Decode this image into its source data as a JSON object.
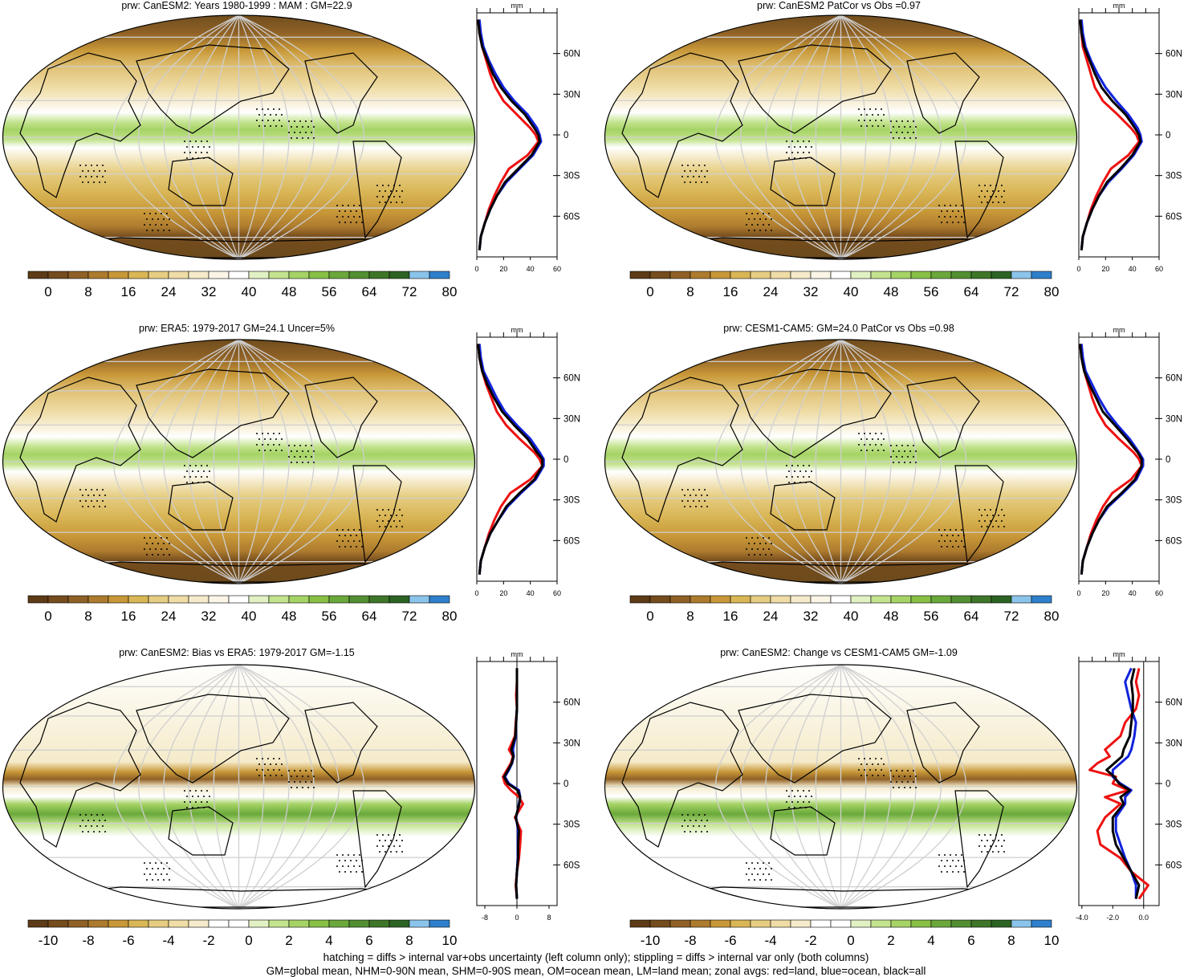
{
  "footnotes": [
    "hatching = diffs > internal var+obs uncertainty (left column only); stippling = diffs > internal var only (both columns)",
    "GM=global mean, NHM=0-90N mean, SHM=0-90S mean, OM=ocean mean, LM=land mean; zonal avgs: red=land, blue=ocean, black=all"
  ],
  "colors": {
    "zonal_land": "#ee1111",
    "zonal_ocean": "#1122dd",
    "zonal_all": "#000000"
  },
  "abs_palette": [
    "#5c3b16",
    "#754c1d",
    "#8f6126",
    "#ad7b2e",
    "#c89838",
    "#d9b656",
    "#e6cd82",
    "#efdca6",
    "#f5ebca",
    "#faf5e6",
    "#ffffff",
    "#e2f1c3",
    "#c3e38e",
    "#a5d365",
    "#87c045",
    "#6aa83b",
    "#528f32",
    "#3e7629",
    "#2c6323",
    "#8bc4ea",
    "#2f80cc"
  ],
  "diff_palette": [
    "#5c3b16",
    "#754c1d",
    "#8f6126",
    "#ad7b2e",
    "#c89838",
    "#d9b656",
    "#e6cd82",
    "#efdca6",
    "#f5ebca",
    "#ffffff",
    "#ffffff",
    "#e2f1c3",
    "#c3e38e",
    "#a5d365",
    "#87c045",
    "#6aa83b",
    "#528f32",
    "#3e7629",
    "#2c6323",
    "#8bc4ea",
    "#2f80cc"
  ],
  "panels": [
    {
      "id": "p1",
      "title": "prw: CanESM2: Years 1980-1999 : MAM : GM=22.9",
      "colorbar_labels": [
        "0",
        "8",
        "16",
        "24",
        "32",
        "40",
        "48",
        "56",
        "64",
        "72",
        "80"
      ],
      "zonal_unit": "mm",
      "zonal_xticks": [
        "0",
        "20",
        "40",
        "60"
      ],
      "zonal_yticks": [
        "60N",
        "30N",
        "0",
        "30S",
        "60S"
      ],
      "chart_data": {
        "type": "line",
        "xlim": [
          0,
          60
        ],
        "ylim": [
          -90,
          90
        ],
        "lat": [
          -85,
          -75,
          -65,
          -55,
          -45,
          -35,
          -25,
          -15,
          -5,
          0,
          5,
          15,
          25,
          35,
          45,
          55,
          65,
          75,
          85
        ],
        "series": [
          {
            "color_key": "zonal_land",
            "values": [
              2,
              3,
              6,
              9,
              13,
              18,
              24,
              38,
              46,
              44,
              40,
              30,
              20,
              14,
              10,
              7,
              4,
              2,
              1
            ]
          },
          {
            "color_key": "zonal_ocean",
            "values": [
              2,
              3,
              6,
              10,
              15,
              22,
              32,
              42,
              48,
              47,
              45,
              38,
              28,
              20,
              14,
              9,
              5,
              3,
              2
            ]
          },
          {
            "color_key": "zonal_all",
            "values": [
              2,
              3,
              6,
              10,
              15,
              21,
              31,
              41,
              47,
              46,
              43,
              36,
              26,
              18,
              12,
              8,
              4,
              2,
              1
            ]
          }
        ]
      }
    },
    {
      "id": "p2",
      "title": "prw: CanESM2 PatCor vs Obs =0.97",
      "colorbar_labels": [
        "0",
        "8",
        "16",
        "24",
        "32",
        "40",
        "48",
        "56",
        "64",
        "72",
        "80"
      ],
      "zonal_unit": "mm",
      "zonal_xticks": [
        "0",
        "20",
        "40",
        "60"
      ],
      "zonal_yticks": [
        "60N",
        "30N",
        "0",
        "30S",
        "60S"
      ],
      "chart_data": {
        "type": "line",
        "xlim": [
          0,
          60
        ],
        "ylim": [
          -90,
          90
        ],
        "lat": [
          -85,
          -75,
          -65,
          -55,
          -45,
          -35,
          -25,
          -15,
          -5,
          0,
          5,
          15,
          25,
          35,
          45,
          55,
          65,
          75,
          85
        ],
        "series": [
          {
            "color_key": "zonal_land",
            "values": [
              2,
              3,
              6,
              9,
              13,
              18,
              24,
              37,
              45,
              43,
              39,
              29,
              18,
              12,
              9,
              6,
              3,
              2,
              1
            ]
          },
          {
            "color_key": "zonal_ocean",
            "values": [
              2,
              3,
              6,
              10,
              15,
              22,
              32,
              41,
              47,
              46,
              44,
              37,
              28,
              20,
              14,
              9,
              5,
              3,
              2
            ]
          },
          {
            "color_key": "zonal_all",
            "values": [
              2,
              3,
              6,
              10,
              15,
              21,
              31,
              40,
              46,
              45,
              42,
              35,
              25,
              17,
              12,
              8,
              4,
              2,
              1
            ]
          }
        ]
      }
    },
    {
      "id": "p3",
      "title": "prw: ERA5: 1979-2017 GM=24.1 Uncer=5%",
      "colorbar_labels": [
        "0",
        "8",
        "16",
        "24",
        "32",
        "40",
        "48",
        "56",
        "64",
        "72",
        "80"
      ],
      "zonal_unit": "mm",
      "zonal_xticks": [
        "0",
        "20",
        "40",
        "60"
      ],
      "zonal_yticks": [
        "60N",
        "30N",
        "0",
        "30S",
        "60S"
      ],
      "chart_data": {
        "type": "line",
        "xlim": [
          0,
          60
        ],
        "ylim": [
          -90,
          90
        ],
        "lat": [
          -85,
          -75,
          -65,
          -55,
          -45,
          -35,
          -25,
          -15,
          -5,
          0,
          5,
          15,
          25,
          35,
          45,
          55,
          65,
          75,
          85
        ],
        "series": [
          {
            "color_key": "zonal_land",
            "values": [
              2,
              3,
              6,
              9,
              13,
              18,
              25,
              40,
              49,
              47,
              43,
              32,
              22,
              15,
              11,
              7,
              4,
              2,
              1
            ]
          },
          {
            "color_key": "zonal_ocean",
            "values": [
              2,
              3,
              6,
              10,
              16,
              23,
              33,
              44,
              50,
              50,
              47,
              40,
              30,
              21,
              15,
              10,
              5,
              3,
              2
            ]
          },
          {
            "color_key": "zonal_all",
            "values": [
              2,
              3,
              6,
              10,
              16,
              22,
              32,
              43,
              49,
              49,
              45,
              38,
              28,
              19,
              13,
              8,
              4,
              2,
              1
            ]
          }
        ]
      }
    },
    {
      "id": "p4",
      "title": "prw: CESM1-CAM5: GM=24.0 PatCor vs Obs =0.98",
      "colorbar_labels": [
        "0",
        "8",
        "16",
        "24",
        "32",
        "40",
        "48",
        "56",
        "64",
        "72",
        "80"
      ],
      "zonal_unit": "mm",
      "zonal_xticks": [
        "0",
        "20",
        "40",
        "60"
      ],
      "zonal_yticks": [
        "60N",
        "30N",
        "0",
        "30S",
        "60S"
      ],
      "chart_data": {
        "type": "line",
        "xlim": [
          0,
          60
        ],
        "ylim": [
          -90,
          90
        ],
        "lat": [
          -85,
          -75,
          -65,
          -55,
          -45,
          -35,
          -25,
          -15,
          -5,
          0,
          5,
          15,
          25,
          35,
          45,
          55,
          65,
          75,
          85
        ],
        "series": [
          {
            "color_key": "zonal_land",
            "values": [
              2,
              3,
              6,
              9,
              13,
              18,
              25,
              39,
              47,
              45,
              41,
              30,
              20,
              14,
              10,
              7,
              4,
              2,
              1
            ]
          },
          {
            "color_key": "zonal_ocean",
            "values": [
              2,
              3,
              6,
              10,
              15,
              22,
              33,
              43,
              48,
              48,
              45,
              38,
              29,
              21,
              15,
              10,
              5,
              3,
              2
            ]
          },
          {
            "color_key": "zonal_all",
            "values": [
              2,
              3,
              6,
              10,
              15,
              21,
              32,
              42,
              47,
              47,
              44,
              36,
              27,
              18,
              13,
              8,
              4,
              2,
              1
            ]
          }
        ]
      }
    },
    {
      "id": "p5",
      "title": "prw: CanESM2: Bias vs ERA5: 1979-2017 GM=-1.15",
      "colorbar_labels": [
        "-10",
        "-8",
        "-6",
        "-4",
        "-2",
        "0",
        "2",
        "4",
        "6",
        "8",
        "10"
      ],
      "zonal_unit": "mm",
      "zonal_xticks": [
        "-8",
        "-4",
        "0",
        "4",
        "8"
      ],
      "zonal_xtick_labels_shown": [
        "-8",
        "0",
        "8"
      ],
      "zonal_yticks": [
        "60N",
        "30N",
        "0",
        "30S",
        "60S"
      ],
      "chart_data": {
        "type": "line",
        "xlim": [
          -10,
          10
        ],
        "ylim": [
          -90,
          90
        ],
        "lat": [
          -85,
          -75,
          -65,
          -55,
          -45,
          -35,
          -25,
          -15,
          -10,
          -5,
          0,
          5,
          10,
          15,
          20,
          25,
          35,
          45,
          55,
          65,
          75,
          85
        ],
        "series": [
          {
            "color_key": "zonal_land",
            "values": [
              0,
              -0.3,
              0,
              0.5,
              0.8,
              1,
              -0.5,
              1.5,
              0.5,
              -1.5,
              -3,
              -3.5,
              -2.5,
              -1.5,
              -1,
              -2,
              -0.5,
              -0.3,
              0,
              -0.2,
              0,
              0
            ]
          },
          {
            "color_key": "zonal_ocean",
            "values": [
              0,
              -0.2,
              0,
              0.2,
              0.2,
              0.3,
              -0.2,
              0.5,
              0.8,
              0.5,
              -2,
              -3,
              -2,
              -1.2,
              -0.8,
              -1,
              -0.3,
              -0.2,
              0,
              0,
              0,
              0
            ]
          },
          {
            "color_key": "zonal_all",
            "values": [
              0,
              -0.2,
              0,
              0.3,
              0.3,
              0.5,
              -0.3,
              0.6,
              0.8,
              0.2,
              -2.3,
              -3.2,
              -2.2,
              -1.3,
              -0.9,
              -1.4,
              -0.4,
              -0.2,
              0,
              0,
              0,
              0
            ]
          }
        ]
      }
    },
    {
      "id": "p6",
      "title": "prw: CanESM2: Change vs CESM1-CAM5 GM=-1.09",
      "colorbar_labels": [
        "-10",
        "-8",
        "-6",
        "-4",
        "-2",
        "0",
        "2",
        "4",
        "6",
        "8",
        "10"
      ],
      "zonal_unit": "mm",
      "zonal_xticks": [
        "-4.0",
        "-2.0",
        "0.0"
      ],
      "zonal_yticks": [
        "60N",
        "30N",
        "0",
        "30S",
        "60S"
      ],
      "chart_data": {
        "type": "line",
        "xlim": [
          -4.2,
          1.0
        ],
        "ylim": [
          -90,
          90
        ],
        "lat": [
          -85,
          -75,
          -65,
          -55,
          -45,
          -35,
          -25,
          -15,
          -10,
          -5,
          0,
          5,
          10,
          15,
          20,
          25,
          35,
          45,
          55,
          65,
          75,
          85
        ],
        "series": [
          {
            "color_key": "zonal_land",
            "values": [
              -0.3,
              0.3,
              -0.8,
              -1.5,
              -2.8,
              -3.0,
              -2.5,
              -1.5,
              -2.5,
              -1.0,
              -2.0,
              -1.8,
              -3.5,
              -3.0,
              -2.2,
              -2.5,
              -1.5,
              -1.2,
              -0.5,
              -0.3,
              -0.5,
              -0.3
            ]
          },
          {
            "color_key": "zonal_ocean",
            "values": [
              -0.5,
              -0.5,
              -0.8,
              -1.2,
              -1.5,
              -1.8,
              -1.8,
              -1.2,
              -1.2,
              -0.8,
              -1.5,
              -2.0,
              -2.0,
              -1.5,
              -1.0,
              -0.8,
              -0.6,
              -0.5,
              -0.8,
              -1.0,
              -1.2,
              -0.8
            ]
          },
          {
            "color_key": "zonal_all",
            "values": [
              -0.5,
              -0.3,
              -0.8,
              -1.3,
              -1.8,
              -2.0,
              -2.0,
              -1.3,
              -1.5,
              -0.9,
              -1.6,
              -1.9,
              -2.4,
              -1.9,
              -1.4,
              -1.3,
              -0.9,
              -0.8,
              -0.7,
              -0.7,
              -0.8,
              -0.6
            ]
          }
        ]
      }
    }
  ]
}
